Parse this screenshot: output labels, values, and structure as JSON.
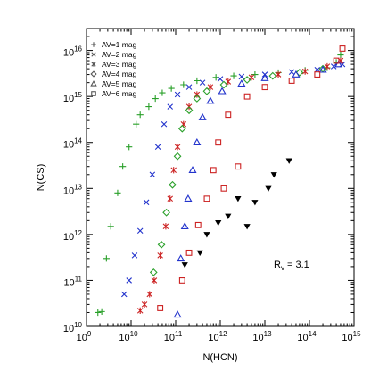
{
  "chart_data": {
    "type": "scatter",
    "xlabel": "N(HCN)",
    "ylabel": "N(CS)",
    "x_scale": "log",
    "y_scale": "log",
    "xlim": [
      1000000000.0,
      1000000000000000.0
    ],
    "ylim": [
      10000000000.0,
      3e+16
    ],
    "x_tick_exponents": [
      9,
      10,
      11,
      12,
      13,
      14,
      15
    ],
    "y_tick_exponents": [
      10,
      11,
      12,
      13,
      14,
      15,
      16
    ],
    "tick_base": "10",
    "legend_position": "top-left",
    "annotation": {
      "main": "R",
      "sub": "v",
      "rest": " = 3.1"
    },
    "series": [
      {
        "name": "AV=1 mag",
        "marker": "plus",
        "color": "#2aa02a",
        "points": [
          [
            1800000000.0,
            20000000000.0
          ],
          [
            2200000000.0,
            21000000000.0
          ],
          [
            2800000000.0,
            300000000000.0
          ],
          [
            3500000000.0,
            1500000000000.0
          ],
          [
            5000000000.0,
            8000000000000.0
          ],
          [
            6500000000.0,
            30000000000000.0
          ],
          [
            9000000000.0,
            80000000000000.0
          ],
          [
            13000000000.0,
            250000000000000.0
          ],
          [
            16000000000.0,
            400000000000000.0
          ],
          [
            25000000000.0,
            600000000000000.0
          ],
          [
            35000000000.0,
            900000000000000.0
          ],
          [
            50000000000.0,
            1200000000000000.0
          ],
          [
            80000000000.0,
            1500000000000000.0
          ],
          [
            150000000000.0,
            1800000000000000.0
          ],
          [
            300000000000.0,
            2200000000000000.0
          ],
          [
            800000000000.0,
            2600000000000000.0
          ],
          [
            2000000000000.0,
            2800000000000000.0
          ],
          [
            6000000000000.0,
            3000000000000000.0
          ],
          [
            20000000000000.0,
            3300000000000000.0
          ],
          [
            80000000000000.0,
            3700000000000000.0
          ],
          [
            250000000000000.0,
            4200000000000000.0
          ],
          [
            400000000000000.0,
            5500000000000000.0
          ],
          [
            500000000000000.0,
            8000000000000000.0
          ]
        ]
      },
      {
        "name": "AV=2 mag",
        "marker": "x",
        "color": "#2233cc",
        "points": [
          [
            7000000000.0,
            50000000000.0
          ],
          [
            9000000000.0,
            100000000000.0
          ],
          [
            12000000000.0,
            350000000000.0
          ],
          [
            16000000000.0,
            1200000000000.0
          ],
          [
            22000000000.0,
            5000000000000.0
          ],
          [
            30000000000.0,
            20000000000000.0
          ],
          [
            40000000000.0,
            80000000000000.0
          ],
          [
            55000000000.0,
            250000000000000.0
          ],
          [
            75000000000.0,
            600000000000000.0
          ],
          [
            110000000000.0,
            1100000000000000.0
          ],
          [
            200000000000.0,
            1600000000000000.0
          ],
          [
            400000000000.0,
            2000000000000000.0
          ],
          [
            1000000000000.0,
            2400000000000000.0
          ],
          [
            3000000000000.0,
            2700000000000000.0
          ],
          [
            10000000000000.0,
            3000000000000000.0
          ],
          [
            40000000000000.0,
            3400000000000000.0
          ],
          [
            150000000000000.0,
            3800000000000000.0
          ],
          [
            350000000000000.0,
            4500000000000000.0
          ],
          [
            550000000000000.0,
            5000000000000000.0
          ]
        ]
      },
      {
        "name": "AV=3 mag",
        "marker": "star",
        "color": "#cc2222",
        "points": [
          [
            16000000000.0,
            22000000000.0
          ],
          [
            20000000000.0,
            30000000000.0
          ],
          [
            26000000000.0,
            50000000000.0
          ],
          [
            33000000000.0,
            100000000000.0
          ],
          [
            45000000000.0,
            350000000000.0
          ],
          [
            60000000000.0,
            1500000000000.0
          ],
          [
            75000000000.0,
            6000000000000.0
          ],
          [
            90000000000.0,
            25000000000000.0
          ],
          [
            110000000000.0,
            80000000000000.0
          ],
          [
            150000000000.0,
            250000000000000.0
          ],
          [
            200000000000.0,
            600000000000000.0
          ],
          [
            300000000000.0,
            1100000000000000.0
          ],
          [
            600000000000.0,
            1600000000000000.0
          ],
          [
            1500000000000.0,
            2100000000000000.0
          ],
          [
            5000000000000.0,
            2600000000000000.0
          ],
          [
            20000000000000.0,
            3000000000000000.0
          ],
          [
            80000000000000.0,
            3500000000000000.0
          ],
          [
            250000000000000.0,
            4500000000000000.0
          ],
          [
            500000000000000.0,
            6000000000000000.0
          ]
        ]
      },
      {
        "name": "AV=4 mag",
        "marker": "diamond",
        "color": "#2aa02a",
        "points": [
          [
            32000000000.0,
            150000000000.0
          ],
          [
            48000000000.0,
            600000000000.0
          ],
          [
            62000000000.0,
            3000000000000.0
          ],
          [
            85000000000.0,
            12000000000000.0
          ],
          [
            110000000000.0,
            50000000000000.0
          ],
          [
            140000000000.0,
            200000000000000.0
          ],
          [
            200000000000.0,
            500000000000000.0
          ],
          [
            300000000000.0,
            900000000000000.0
          ],
          [
            500000000000.0,
            1300000000000000.0
          ],
          [
            1200000000000.0,
            1800000000000000.0
          ],
          [
            4000000000000.0,
            2300000000000000.0
          ],
          [
            15000000000000.0,
            2800000000000000.0
          ],
          [
            60000000000000.0,
            3300000000000000.0
          ],
          [
            200000000000000.0,
            4000000000000000.0
          ]
        ]
      },
      {
        "name": "AV=5 mag",
        "marker": "triangle",
        "color": "#2233cc",
        "points": [
          [
            110000000000.0,
            18000000000.0
          ],
          [
            130000000000.0,
            300000000000.0
          ],
          [
            160000000000.0,
            1500000000000.0
          ],
          [
            190000000000.0,
            6000000000000.0
          ],
          [
            240000000000.0,
            25000000000000.0
          ],
          [
            300000000000.0,
            100000000000000.0
          ],
          [
            400000000000.0,
            350000000000000.0
          ],
          [
            600000000000.0,
            800000000000000.0
          ],
          [
            1100000000000.0,
            1300000000000000.0
          ],
          [
            3000000000000.0,
            1900000000000000.0
          ],
          [
            10000000000000.0,
            2500000000000000.0
          ],
          [
            50000000000000.0,
            3000000000000000.0
          ],
          [
            200000000000000.0,
            3800000000000000.0
          ],
          [
            450000000000000.0,
            5000000000000000.0
          ]
        ]
      },
      {
        "name": "AV=6 mag",
        "marker": "square",
        "color": "#cc2222",
        "points": [
          [
            45000000000.0,
            25000000000.0
          ],
          [
            140000000000.0,
            100000000000.0
          ],
          [
            200000000000.0,
            400000000000.0
          ],
          [
            320000000000.0,
            1600000000000.0
          ],
          [
            500000000000.0,
            6000000000000.0
          ],
          [
            700000000000.0,
            25000000000000.0
          ],
          [
            900000000000.0,
            100000000000000.0
          ],
          [
            1200000000000.0,
            10000000000000.0
          ],
          [
            1500000000000.0,
            400000000000000.0
          ],
          [
            2500000000000.0,
            30000000000000.0
          ],
          [
            4000000000000.0,
            1000000000000000.0
          ],
          [
            10000000000000.0,
            1600000000000000.0
          ],
          [
            40000000000000.0,
            2200000000000000.0
          ],
          [
            150000000000000.0,
            3000000000000000.0
          ],
          [
            400000000000000.0,
            6000000000000000.0
          ],
          [
            550000000000000.0,
            1.1e+16
          ]
        ]
      },
      {
        "name": "",
        "marker": "filled-triangle-down",
        "color": "#000000",
        "points": [
          [
            160000000000.0,
            220000000000.0
          ],
          [
            350000000000.0,
            400000000000.0
          ],
          [
            500000000000.0,
            1000000000000.0
          ],
          [
            900000000000.0,
            1800000000000.0
          ],
          [
            1500000000000.0,
            2500000000000.0
          ],
          [
            2500000000000.0,
            6000000000000.0
          ],
          [
            4000000000000.0,
            1500000000000.0
          ],
          [
            6000000000000.0,
            5000000000000.0
          ],
          [
            12000000000000.0,
            10000000000000.0
          ],
          [
            16000000000000.0,
            20000000000000.0
          ],
          [
            35000000000000.0,
            40000000000000.0
          ]
        ]
      }
    ]
  }
}
